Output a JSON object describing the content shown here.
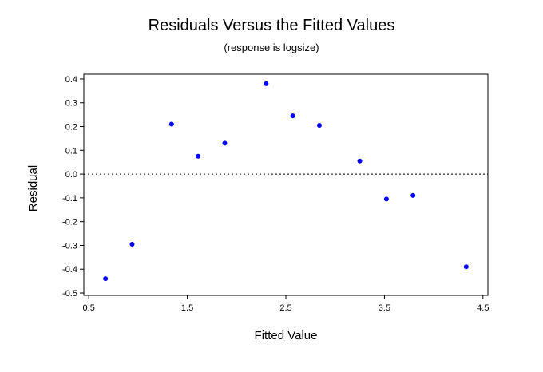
{
  "chart_data": {
    "type": "scatter",
    "title": "Residuals Versus the Fitted Values",
    "subtitle": "(response is logsize)",
    "xlabel": "Fitted Value",
    "ylabel": "Residual",
    "xlim": [
      0.45,
      4.55
    ],
    "ylim": [
      -0.51,
      0.42
    ],
    "xticks": [
      0.5,
      1.5,
      2.5,
      3.5,
      4.5
    ],
    "xtick_labels": [
      "0.5",
      "1.5",
      "2.5",
      "3.5",
      "4.5"
    ],
    "yticks": [
      0.4,
      0.3,
      0.2,
      0.1,
      0.0,
      -0.1,
      -0.2,
      -0.3,
      -0.4,
      -0.5
    ],
    "ytick_labels": [
      "0.4",
      "0.3",
      "0.2",
      "0.1",
      "0.0",
      "-0.1",
      "-0.2",
      "-0.3",
      "-0.4",
      "-0.5"
    ],
    "reference_line": {
      "y": 0.0,
      "style": "dotted"
    },
    "point_color": "#0000ff",
    "grid": false,
    "points": [
      {
        "x": 0.67,
        "y": -0.44
      },
      {
        "x": 0.94,
        "y": -0.295
      },
      {
        "x": 1.34,
        "y": 0.21
      },
      {
        "x": 1.61,
        "y": 0.075
      },
      {
        "x": 1.88,
        "y": 0.13
      },
      {
        "x": 2.3,
        "y": 0.38
      },
      {
        "x": 2.57,
        "y": 0.245
      },
      {
        "x": 2.84,
        "y": 0.205
      },
      {
        "x": 3.25,
        "y": 0.055
      },
      {
        "x": 3.52,
        "y": -0.105
      },
      {
        "x": 3.79,
        "y": -0.09
      },
      {
        "x": 4.33,
        "y": -0.39
      }
    ]
  }
}
